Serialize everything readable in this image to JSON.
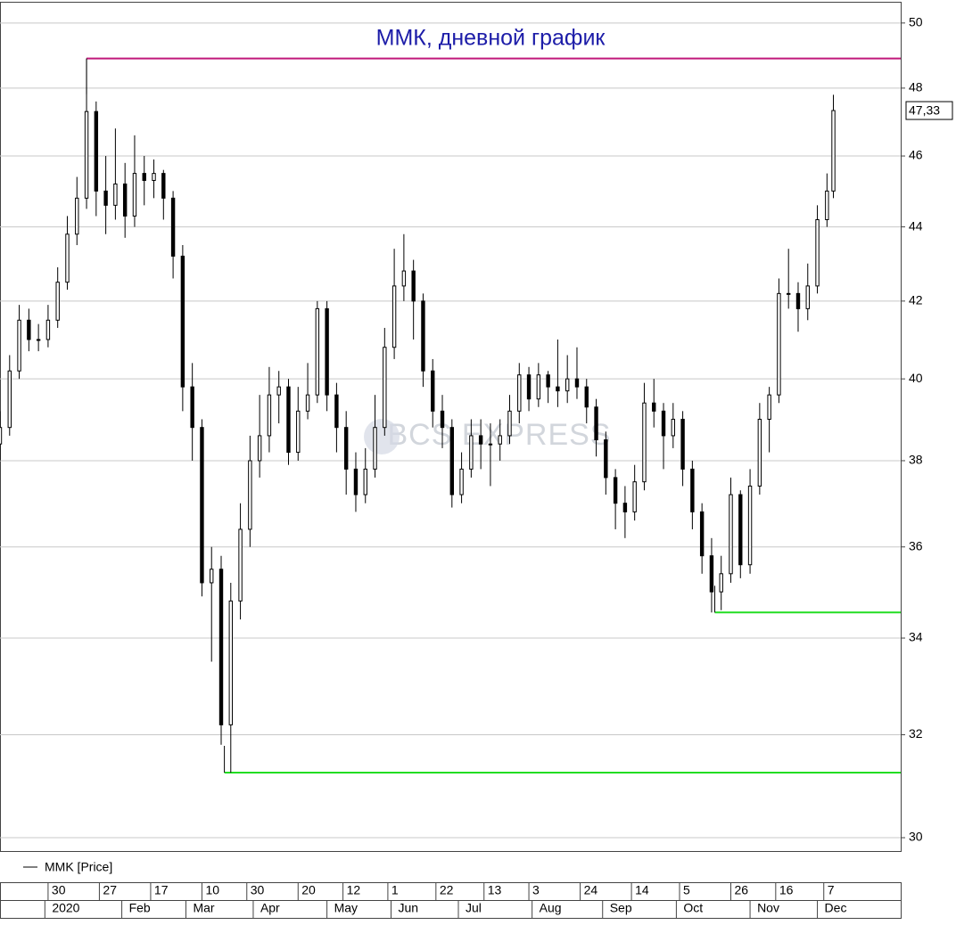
{
  "chart_data": {
    "type": "candlestick",
    "title": "ММК, дневной график",
    "watermark": "BCS EXPRESS",
    "log_scale": true,
    "grid": true,
    "ylim": [
      29.75,
      50.67
    ],
    "yticks": [
      30,
      32,
      34,
      36,
      38,
      40,
      42,
      44,
      46,
      48,
      50
    ],
    "xlim": [
      0,
      281
    ],
    "xticks": [
      {
        "value": 15,
        "label": "30"
      },
      {
        "value": 31,
        "label": "27"
      },
      {
        "value": 47,
        "label": "17"
      },
      {
        "value": 63,
        "label": "10"
      },
      {
        "value": 77,
        "label": "30"
      },
      {
        "value": 93,
        "label": "20"
      },
      {
        "value": 107,
        "label": "12"
      },
      {
        "value": 121,
        "label": "1"
      },
      {
        "value": 136,
        "label": "22"
      },
      {
        "value": 151,
        "label": "13"
      },
      {
        "value": 165,
        "label": "3"
      },
      {
        "value": 181,
        "label": "24"
      },
      {
        "value": 197,
        "label": "14"
      },
      {
        "value": 212,
        "label": "5"
      },
      {
        "value": 228,
        "label": "26"
      },
      {
        "value": 242,
        "label": "16"
      },
      {
        "value": 257,
        "label": "7"
      }
    ],
    "month_ticks": [
      {
        "value": 14,
        "label": "2020"
      },
      {
        "value": 38,
        "label": "Feb"
      },
      {
        "value": 58,
        "label": "Mar"
      },
      {
        "value": 79,
        "label": "Apr"
      },
      {
        "value": 102,
        "label": "May"
      },
      {
        "value": 122,
        "label": "Jun"
      },
      {
        "value": 143,
        "label": "Jul"
      },
      {
        "value": 166,
        "label": "Aug"
      },
      {
        "value": 188,
        "label": "Sep"
      },
      {
        "value": 211,
        "label": "Oct"
      },
      {
        "value": 234,
        "label": "Nov"
      },
      {
        "value": 255,
        "label": "Dec"
      }
    ],
    "series": [
      {
        "name": "MMK [Price]",
        "color": "#000000",
        "x": [
          0,
          3,
          6,
          9,
          12,
          15,
          18,
          21,
          24,
          27,
          30,
          33,
          36,
          39,
          42,
          45,
          48,
          51,
          54,
          57,
          60,
          63,
          66,
          69,
          72,
          75,
          78,
          81,
          84,
          87,
          90,
          93,
          96,
          99,
          102,
          105,
          108,
          111,
          114,
          117,
          120,
          123,
          126,
          129,
          132,
          135,
          138,
          141,
          144,
          147,
          150,
          153,
          156,
          159,
          162,
          165,
          168,
          171,
          174,
          177,
          180,
          183,
          186,
          189,
          192,
          195,
          198,
          201,
          204,
          207,
          210,
          213,
          216,
          219,
          222,
          225,
          228,
          231,
          234,
          237,
          240,
          243,
          246,
          249,
          252,
          255,
          258,
          260
        ],
        "open": [
          38.4,
          38.8,
          40.2,
          41.5,
          41.0,
          41.0,
          41.5,
          42.5,
          43.8,
          44.8,
          47.3,
          45.0,
          44.6,
          45.2,
          44.3,
          45.5,
          45.3,
          45.5,
          44.8,
          43.2,
          39.8,
          38.8,
          35.2,
          35.5,
          32.2,
          34.8,
          36.4,
          38.0,
          38.6,
          39.6,
          39.8,
          38.2,
          39.2,
          39.6,
          41.8,
          39.6,
          38.8,
          37.8,
          37.2,
          37.8,
          38.8,
          40.8,
          42.4,
          42.8,
          42.0,
          40.2,
          39.2,
          38.8,
          37.2,
          37.8,
          38.6,
          38.4,
          38.4,
          38.6,
          39.2,
          40.1,
          39.5,
          40.1,
          39.8,
          39.7,
          40.0,
          39.8,
          39.3,
          38.5,
          37.6,
          37.0,
          36.8,
          37.5,
          39.4,
          39.2,
          38.6,
          39.0,
          37.8,
          36.8,
          35.8,
          35.0,
          35.4,
          37.2,
          35.6,
          37.4,
          39.0,
          39.6,
          42.2,
          42.2,
          41.8,
          42.4,
          44.2,
          45.0
        ],
        "close": [
          38.8,
          40.2,
          41.5,
          41.0,
          41.0,
          41.5,
          42.5,
          43.8,
          44.8,
          47.3,
          45.0,
          44.6,
          45.2,
          44.3,
          45.5,
          45.3,
          45.5,
          44.8,
          43.2,
          39.8,
          38.8,
          35.2,
          35.5,
          32.2,
          34.8,
          36.4,
          38.0,
          38.6,
          39.6,
          39.8,
          38.2,
          39.2,
          39.6,
          41.8,
          39.6,
          38.8,
          37.8,
          37.2,
          37.8,
          38.8,
          40.8,
          42.4,
          42.8,
          42.0,
          40.2,
          39.2,
          38.8,
          37.2,
          37.8,
          38.6,
          38.4,
          38.4,
          38.6,
          39.2,
          40.1,
          39.5,
          40.1,
          39.8,
          39.7,
          40.0,
          39.8,
          39.3,
          38.5,
          37.6,
          37.0,
          36.8,
          37.5,
          39.4,
          39.2,
          38.6,
          39.0,
          37.8,
          36.8,
          35.8,
          35.0,
          35.4,
          37.2,
          35.6,
          37.4,
          39.0,
          39.6,
          42.2,
          42.2,
          41.8,
          42.4,
          44.2,
          45.0,
          47.33
        ],
        "high": [
          39.2,
          40.6,
          41.9,
          41.8,
          41.4,
          41.9,
          42.9,
          44.3,
          45.4,
          48.9,
          47.6,
          46.0,
          46.8,
          45.8,
          46.6,
          46.0,
          45.9,
          45.6,
          45.0,
          43.5,
          40.4,
          39.0,
          36.0,
          35.8,
          35.2,
          37.0,
          38.6,
          39.6,
          40.3,
          40.2,
          40.0,
          39.8,
          40.4,
          42.0,
          42.0,
          39.9,
          39.2,
          38.2,
          38.3,
          39.6,
          41.3,
          43.4,
          43.8,
          43.1,
          42.2,
          40.5,
          39.6,
          39.0,
          38.2,
          39.0,
          39.0,
          38.9,
          39.0,
          39.6,
          40.4,
          40.3,
          40.4,
          40.2,
          41.0,
          40.6,
          40.8,
          40.0,
          39.5,
          38.7,
          37.8,
          37.4,
          37.9,
          39.9,
          40.0,
          39.4,
          39.4,
          39.2,
          38.0,
          37.0,
          36.2,
          35.8,
          37.6,
          37.3,
          37.8,
          39.4,
          39.8,
          42.6,
          43.4,
          42.5,
          43.0,
          44.6,
          45.5,
          47.8
        ],
        "low": [
          38.0,
          38.6,
          40.0,
          40.7,
          40.7,
          40.8,
          41.3,
          42.3,
          43.5,
          44.5,
          44.3,
          43.8,
          44.2,
          43.7,
          44.0,
          44.6,
          44.8,
          44.2,
          42.6,
          39.2,
          38.0,
          34.9,
          33.5,
          31.8,
          31.25,
          34.4,
          36.0,
          37.6,
          38.2,
          38.9,
          37.9,
          38.0,
          39.0,
          39.4,
          39.2,
          38.2,
          37.2,
          36.8,
          37.0,
          37.6,
          38.6,
          40.5,
          42.0,
          41.0,
          39.8,
          38.8,
          38.3,
          36.9,
          37.0,
          37.6,
          37.8,
          37.4,
          38.0,
          38.4,
          38.9,
          39.2,
          39.3,
          39.4,
          39.3,
          39.4,
          39.5,
          38.9,
          38.1,
          37.2,
          36.4,
          36.2,
          36.6,
          37.3,
          38.8,
          37.8,
          38.3,
          37.4,
          36.4,
          35.4,
          34.55,
          34.6,
          35.2,
          35.3,
          35.4,
          37.2,
          38.2,
          39.4,
          41.8,
          41.2,
          41.5,
          42.2,
          44.0,
          44.8
        ]
      }
    ],
    "levels": [
      {
        "value": 48.9,
        "x_start": 27,
        "color": "#c0187a"
      },
      {
        "value": 34.55,
        "x_start": 223,
        "color": "#22dd22"
      },
      {
        "value": 31.25,
        "x_start": 70,
        "color": "#22dd22"
      }
    ],
    "last_price": {
      "value": 47.33,
      "label": "47,33"
    }
  }
}
